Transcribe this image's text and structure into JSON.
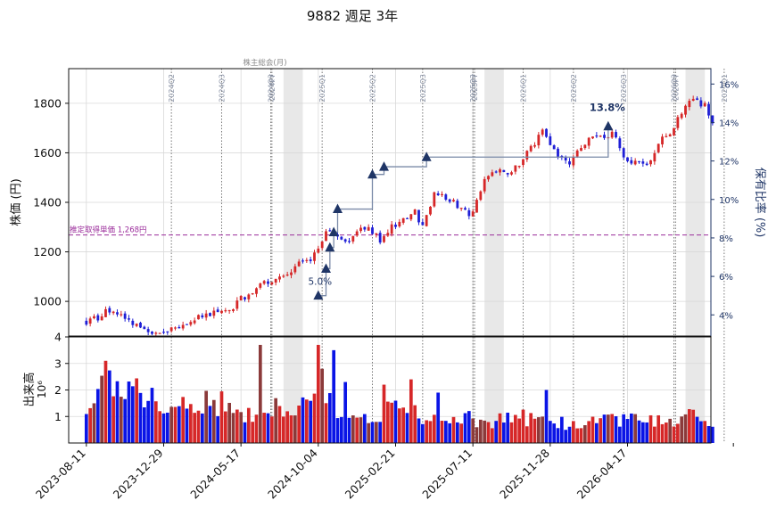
{
  "chart_data": {
    "type": "candlestick",
    "title": "9882 週足 3年",
    "price_axis": {
      "label": "株価 (円)",
      "ylim": [
        860,
        1940
      ],
      "ticks": [
        1000,
        1200,
        1400,
        1600,
        1800
      ]
    },
    "ratio_axis": {
      "label": "保有比率 (%)",
      "ylim": [
        2.9,
        16.8
      ],
      "ticks": [
        "4%",
        "6%",
        "8%",
        "10%",
        "12%",
        "14%",
        "16%"
      ],
      "tick_values": [
        4,
        6,
        8,
        10,
        12,
        14,
        16
      ]
    },
    "volume_axis": {
      "label": "出来高",
      "unit": "10⁶",
      "ylim": [
        0,
        4
      ],
      "ticks": [
        "1",
        "2",
        "3",
        "4"
      ],
      "tick_values": [
        1,
        2,
        3,
        4
      ]
    },
    "x_axis": {
      "start": "2023-07-10",
      "end": "2026-09-15",
      "ticks": [
        "2023-08-11",
        "2023-12-29",
        "2024-05-17",
        "2024-10-04",
        "2025-02-21",
        "2025-07-11",
        "2025-11-28",
        "2026-04-17"
      ]
    },
    "reference_line": {
      "label": "推定取得単価 1,268円",
      "value": 1268,
      "color": "#9b2c9b"
    },
    "event_lines": [
      {
        "date": "2024-01-12",
        "label": "2024Q2"
      },
      {
        "date": "2024-04-12",
        "label": "2024Q3"
      },
      {
        "date": "2024-07-10",
        "label": "2024Q3"
      },
      {
        "date": "2024-07-12",
        "label": "2024FY"
      },
      {
        "date": "2024-10-11",
        "label": "2025Q1"
      },
      {
        "date": "2025-01-10",
        "label": "2025Q2"
      },
      {
        "date": "2025-04-11",
        "label": "2025Q3"
      },
      {
        "date": "2025-07-11",
        "label": "2025Q3"
      },
      {
        "date": "2025-07-14",
        "label": "2025FY"
      },
      {
        "date": "2025-10-10",
        "label": "2026Q1"
      },
      {
        "date": "2026-01-09",
        "label": "2026Q2"
      },
      {
        "date": "2026-04-10",
        "label": "2026Q3"
      },
      {
        "date": "2026-07-10",
        "label": "2026Q3"
      },
      {
        "date": "2026-07-13",
        "label": "2026FY"
      },
      {
        "date": "2026-10-09",
        "label": "2027Q1"
      }
    ],
    "shaded_periods": [
      {
        "start": "2024-08-02",
        "end": "2024-09-06"
      },
      {
        "start": "2025-08-01",
        "end": "2025-09-05"
      },
      {
        "start": "2026-07-31",
        "end": "2026-09-04"
      }
    ],
    "shade_label": "株主総会(月)",
    "holding_steps": [
      {
        "date": "2024-10-04",
        "ratio": 5.0
      },
      {
        "date": "2024-10-18",
        "ratio": 6.4
      },
      {
        "date": "2024-10-25",
        "ratio": 7.5
      },
      {
        "date": "2024-11-01",
        "ratio": 8.3
      },
      {
        "date": "2024-11-08",
        "ratio": 9.5
      },
      {
        "date": "2025-01-10",
        "ratio": 11.3
      },
      {
        "date": "2025-01-31",
        "ratio": 11.7
      },
      {
        "date": "2025-04-18",
        "ratio": 12.2
      },
      {
        "date": "2026-03-13",
        "ratio": 13.8
      }
    ],
    "holding_labels": [
      {
        "text": "5.0%",
        "ratio": 5.0
      },
      {
        "text": "13.8%",
        "ratio": 13.8
      }
    ],
    "price_knots": [
      [
        "2023-08-11",
        918
      ],
      [
        "2023-09-01",
        935
      ],
      [
        "2023-09-22",
        968
      ],
      [
        "2023-10-13",
        945
      ],
      [
        "2023-11-03",
        905
      ],
      [
        "2023-11-24",
        878
      ],
      [
        "2023-12-15",
        882
      ],
      [
        "2023-12-29",
        878
      ],
      [
        "2024-01-19",
        892
      ],
      [
        "2024-02-16",
        918
      ],
      [
        "2024-03-15",
        945
      ],
      [
        "2024-04-12",
        952
      ],
      [
        "2024-05-03",
        970
      ],
      [
        "2024-05-17",
        1010
      ],
      [
        "2024-06-07",
        1045
      ],
      [
        "2024-06-28",
        1070
      ],
      [
        "2024-07-19",
        1090
      ],
      [
        "2024-08-09",
        1100
      ],
      [
        "2024-08-23",
        1150
      ],
      [
        "2024-09-13",
        1160
      ],
      [
        "2024-10-04",
        1200
      ],
      [
        "2024-10-18",
        1280
      ],
      [
        "2024-11-01",
        1265
      ],
      [
        "2024-11-22",
        1235
      ],
      [
        "2024-12-13",
        1285
      ],
      [
        "2025-01-03",
        1300
      ],
      [
        "2025-01-24",
        1250
      ],
      [
        "2025-02-14",
        1300
      ],
      [
        "2025-03-07",
        1330
      ],
      [
        "2025-03-28",
        1360
      ],
      [
        "2025-04-11",
        1300
      ],
      [
        "2025-05-02",
        1440
      ],
      [
        "2025-05-23",
        1420
      ],
      [
        "2025-06-13",
        1390
      ],
      [
        "2025-07-04",
        1340
      ],
      [
        "2025-07-11",
        1370
      ],
      [
        "2025-08-01",
        1500
      ],
      [
        "2025-08-22",
        1520
      ],
      [
        "2025-09-12",
        1525
      ],
      [
        "2025-10-03",
        1545
      ],
      [
        "2025-10-24",
        1620
      ],
      [
        "2025-11-14",
        1680
      ],
      [
        "2025-11-28",
        1640
      ],
      [
        "2025-12-12",
        1590
      ],
      [
        "2026-01-02",
        1560
      ],
      [
        "2026-01-23",
        1620
      ],
      [
        "2026-02-13",
        1660
      ],
      [
        "2026-03-06",
        1660
      ],
      [
        "2026-03-20",
        1690
      ],
      [
        "2026-04-10",
        1580
      ],
      [
        "2026-05-01",
        1560
      ],
      [
        "2026-05-22",
        1540
      ],
      [
        "2026-06-12",
        1640
      ],
      [
        "2026-07-03",
        1680
      ],
      [
        "2026-07-24",
        1770
      ],
      [
        "2026-08-14",
        1820
      ],
      [
        "2026-09-04",
        1790
      ],
      [
        "2026-09-18",
        1730
      ]
    ],
    "volume_knots": [
      [
        "2023-08-11",
        0.9
      ],
      [
        "2023-09-15",
        2.4
      ],
      [
        "2023-10-13",
        1.6
      ],
      [
        "2023-11-17",
        1.9
      ],
      [
        "2023-12-29",
        1.2
      ],
      [
        "2024-02-02",
        1.3
      ],
      [
        "2024-03-08",
        1.6
      ],
      [
        "2024-04-19",
        1.5
      ],
      [
        "2024-05-17",
        1.0
      ],
      [
        "2024-06-21",
        1.1
      ],
      [
        "2024-07-26",
        1.3
      ],
      [
        "2024-08-30",
        1.2
      ],
      [
        "2024-10-11",
        1.7
      ],
      [
        "2024-11-15",
        1.1
      ],
      [
        "2024-12-20",
        0.9
      ],
      [
        "2025-01-24",
        1.0
      ],
      [
        "2025-02-21",
        1.4
      ],
      [
        "2025-04-04",
        1.0
      ],
      [
        "2025-05-16",
        0.8
      ],
      [
        "2025-07-04",
        0.9
      ],
      [
        "2025-08-15",
        0.8
      ],
      [
        "2025-10-03",
        1.0
      ],
      [
        "2025-11-14",
        0.9
      ],
      [
        "2025-12-26",
        0.7
      ],
      [
        "2026-02-06",
        0.9
      ],
      [
        "2026-03-27",
        0.8
      ],
      [
        "2026-05-08",
        0.9
      ],
      [
        "2026-06-26",
        0.8
      ],
      [
        "2026-08-14",
        1.0
      ],
      [
        "2026-09-18",
        0.9
      ]
    ],
    "volume_spikes": [
      [
        "2023-09-15",
        3.1
      ],
      [
        "2024-06-21",
        3.7
      ],
      [
        "2024-10-04",
        3.7
      ],
      [
        "2024-10-11",
        2.8
      ],
      [
        "2024-11-01",
        3.5
      ],
      [
        "2024-11-22",
        2.3
      ],
      [
        "2025-01-31",
        2.2
      ],
      [
        "2025-03-21",
        2.4
      ],
      [
        "2025-05-09",
        1.9
      ],
      [
        "2025-11-21",
        2.0
      ]
    ],
    "colors": {
      "up": "#d62728",
      "down": "#1f1fd6",
      "volume_up": "#d62728",
      "volume_down": "#0a14e6",
      "volume_other": "#8b3a3a",
      "holding": "#1f3566",
      "holding_line": "#7a8aa8",
      "event_line": "#777777",
      "grid": "#d9d9d9",
      "shade": "#e8e8e8"
    }
  }
}
